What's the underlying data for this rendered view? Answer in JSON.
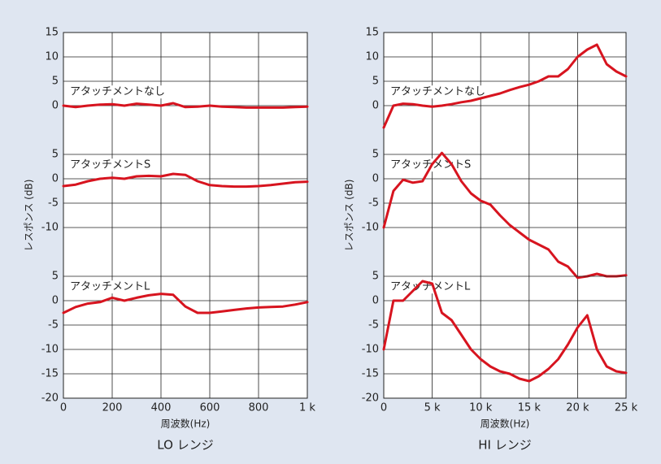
{
  "chart_data": [
    {
      "type": "line",
      "title": "LO レンジ",
      "xlabel": "周波数(Hz)",
      "ylabel": "レスポンス (dB)",
      "color": "#d7141f",
      "grid": true,
      "xlim": [
        0,
        1000
      ],
      "xticks": [
        0,
        200,
        400,
        600,
        800,
        {
          "value": 1000,
          "label": "1 k"
        }
      ],
      "x": [
        0,
        50,
        100,
        150,
        200,
        250,
        300,
        350,
        400,
        450,
        500,
        550,
        600,
        650,
        700,
        750,
        800,
        850,
        900,
        950,
        1000
      ],
      "panels": [
        {
          "name": "アタッチメントなし",
          "ylim": [
            -60,
            15
          ],
          "yticks": [
            0,
            5,
            10,
            15
          ],
          "values": [
            0,
            -0.3,
            0,
            0.2,
            0.3,
            0,
            0.4,
            0.2,
            0,
            0.5,
            -0.3,
            -0.2,
            0,
            -0.2,
            -0.3,
            -0.4,
            -0.4,
            -0.4,
            -0.4,
            -0.3,
            -0.2
          ]
        },
        {
          "name": "アタッチメントS",
          "ylim": [
            -45,
            30
          ],
          "yticks": [
            -10,
            -5,
            0,
            5
          ],
          "values": [
            -1.5,
            -1.2,
            -0.5,
            0,
            0.2,
            0,
            0.5,
            0.6,
            0.5,
            1,
            0.8,
            -0.5,
            -1.3,
            -1.5,
            -1.6,
            -1.6,
            -1.5,
            -1.3,
            -1,
            -0.7,
            -0.6
          ]
        },
        {
          "name": "アタッチメントL",
          "ylim": [
            -20,
            55
          ],
          "yticks": [
            -20,
            -15,
            -10,
            -5,
            0,
            5
          ],
          "values": [
            -2.5,
            -1.3,
            -0.6,
            -0.3,
            0.6,
            0,
            0.6,
            1.1,
            1.4,
            1.2,
            -1.2,
            -2.5,
            -2.5,
            -2.2,
            -1.9,
            -1.6,
            -1.4,
            -1.3,
            -1.2,
            -0.8,
            -0.3
          ]
        }
      ]
    },
    {
      "type": "line",
      "title": "HI レンジ",
      "xlabel": "周波数(Hz)",
      "ylabel": "レスポンス (dB)",
      "color": "#d7141f",
      "grid": true,
      "xlim": [
        0,
        25000
      ],
      "xticks": [
        0,
        {
          "value": 5000,
          "label": "5 k"
        },
        {
          "value": 10000,
          "label": "10 k"
        },
        {
          "value": 15000,
          "label": "15 k"
        },
        {
          "value": 20000,
          "label": "20 k"
        },
        {
          "value": 25000,
          "label": "25 k"
        }
      ],
      "x": [
        0,
        1000,
        2000,
        3000,
        4000,
        5000,
        6000,
        7000,
        8000,
        9000,
        10000,
        11000,
        12000,
        13000,
        14000,
        15000,
        16000,
        17000,
        18000,
        19000,
        20000,
        21000,
        22000,
        23000,
        24000,
        25000
      ],
      "panels": [
        {
          "name": "アタッチメントなし",
          "ylim": [
            -60,
            15
          ],
          "yticks": [
            0,
            5,
            10,
            15
          ],
          "values": [
            -4.5,
            0,
            0.4,
            0.3,
            0,
            -0.2,
            0,
            0.3,
            0.7,
            1,
            1.5,
            2,
            2.5,
            3.2,
            3.8,
            4.3,
            5,
            6,
            6,
            7.5,
            10,
            11.5,
            12.5,
            8.5,
            7,
            6
          ]
        },
        {
          "name": "アタッチメントS",
          "ylim": [
            -45,
            30
          ],
          "yticks": [
            -10,
            -5,
            0,
            5
          ],
          "values": [
            -10,
            -2.5,
            -0.2,
            -0.8,
            -0.5,
            3,
            5.3,
            3,
            -0.5,
            -3,
            -4.5,
            -5.3,
            -7.5,
            -9.5,
            -11,
            -12.5,
            -13.5,
            -14.5,
            -17,
            -18,
            -20.3,
            -20,
            -19.5,
            -20,
            -20,
            -19.8
          ]
        },
        {
          "name": "アタッチメントL",
          "ylim": [
            -20,
            55
          ],
          "yticks": [
            -20,
            -15,
            -10,
            -5,
            0,
            5
          ],
          "values": [
            -10,
            0,
            0,
            2,
            4,
            3.5,
            -2.5,
            -4,
            -7,
            -10,
            -12,
            -13.5,
            -14.5,
            -15,
            -16,
            -16.5,
            -15.5,
            -14,
            -12,
            -9,
            -5.5,
            -3,
            -10,
            -13.5,
            -14.5,
            -14.8
          ]
        }
      ]
    }
  ]
}
